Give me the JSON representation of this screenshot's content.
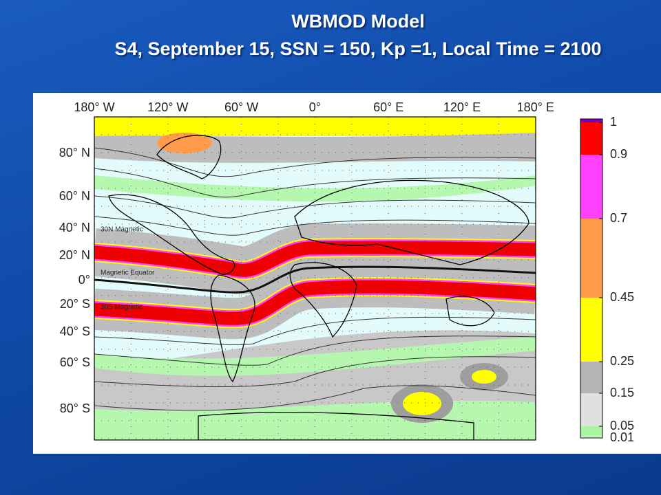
{
  "header": {
    "title": "WBMOD Model",
    "subtitle": "S4, September 15, SSN = 150, Kp =1, Local Time = 2100"
  },
  "map": {
    "longitude_labels": [
      "180° W",
      "120° W",
      "60° W",
      "0°",
      "60° E",
      "120° E",
      "180° E"
    ],
    "latitude_labels": [
      "80° N",
      "60° N",
      "40° N",
      "20° N",
      "0°",
      "20° S",
      "40° S",
      "60° S",
      "80° S"
    ],
    "labels": [
      "30N Magnetic",
      "Magnetic Equator",
      "30S Magnetic"
    ]
  },
  "colorbar": {
    "labels": [
      1,
      0.9,
      0.7,
      0.45,
      0.25,
      0.15,
      0.05,
      0.01
    ]
  }
}
